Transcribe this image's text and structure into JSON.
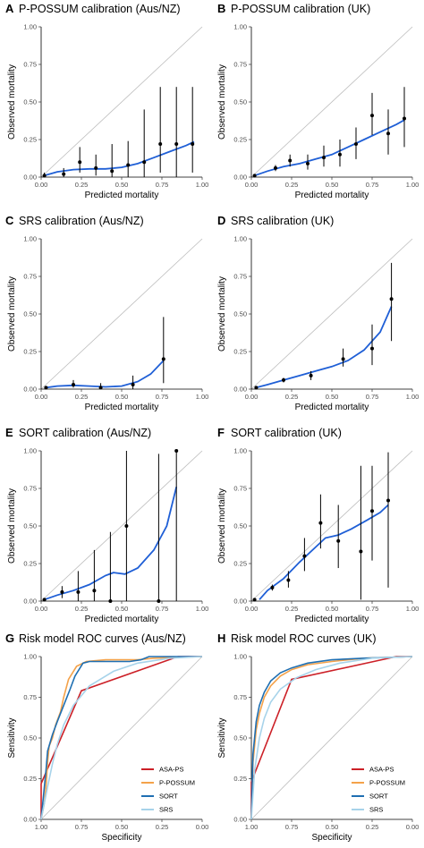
{
  "colors": {
    "calibration_curve": "#1f5fd6",
    "reference_line": "#bdbdbd",
    "points": "#000000"
  },
  "chart_data": [
    {
      "type": "scatter",
      "panel": "A",
      "title": "P-POSSUM calibration (Aus/NZ)",
      "xlabel": "Predicted mortality",
      "ylabel": "Observed mortality",
      "xlim": [
        0,
        1
      ],
      "ylim": [
        0,
        1
      ],
      "xticks": [
        "0.00",
        "0.25",
        "0.50",
        "0.75",
        "1.00"
      ],
      "yticks": [
        "0.00",
        "0.25",
        "0.50",
        "0.75",
        "1.00"
      ],
      "points": [
        {
          "x": 0.02,
          "y": 0.01,
          "lo": 0.0,
          "hi": 0.03
        },
        {
          "x": 0.14,
          "y": 0.02,
          "lo": 0.0,
          "hi": 0.06
        },
        {
          "x": 0.24,
          "y": 0.1,
          "lo": 0.03,
          "hi": 0.2
        },
        {
          "x": 0.34,
          "y": 0.06,
          "lo": 0.01,
          "hi": 0.15
        },
        {
          "x": 0.44,
          "y": 0.04,
          "lo": 0.0,
          "hi": 0.22
        },
        {
          "x": 0.54,
          "y": 0.08,
          "lo": 0.0,
          "hi": 0.24
        },
        {
          "x": 0.64,
          "y": 0.1,
          "lo": 0.0,
          "hi": 0.45
        },
        {
          "x": 0.74,
          "y": 0.22,
          "lo": 0.03,
          "hi": 0.6
        },
        {
          "x": 0.84,
          "y": 0.22,
          "lo": 0.0,
          "hi": 0.6
        },
        {
          "x": 0.94,
          "y": 0.22,
          "lo": 0.03,
          "hi": 0.6
        }
      ],
      "curve": [
        [
          0.02,
          0.01
        ],
        [
          0.1,
          0.035
        ],
        [
          0.2,
          0.05
        ],
        [
          0.3,
          0.055
        ],
        [
          0.4,
          0.055
        ],
        [
          0.5,
          0.065
        ],
        [
          0.6,
          0.09
        ],
        [
          0.7,
          0.13
        ],
        [
          0.8,
          0.17
        ],
        [
          0.9,
          0.21
        ],
        [
          0.95,
          0.235
        ]
      ]
    },
    {
      "type": "scatter",
      "panel": "B",
      "title": "P-POSSUM calibration (UK)",
      "xlabel": "Predicted mortality",
      "ylabel": "Observed mortality",
      "xlim": [
        0,
        1
      ],
      "ylim": [
        0,
        1
      ],
      "xticks": [
        "0.00",
        "0.25",
        "0.50",
        "0.75",
        "1.00"
      ],
      "yticks": [
        "0.00",
        "0.25",
        "0.50",
        "0.75",
        "1.00"
      ],
      "points": [
        {
          "x": 0.02,
          "y": 0.01,
          "lo": 0.005,
          "hi": 0.015
        },
        {
          "x": 0.15,
          "y": 0.06,
          "lo": 0.04,
          "hi": 0.08
        },
        {
          "x": 0.24,
          "y": 0.11,
          "lo": 0.07,
          "hi": 0.15
        },
        {
          "x": 0.35,
          "y": 0.09,
          "lo": 0.05,
          "hi": 0.15
        },
        {
          "x": 0.45,
          "y": 0.13,
          "lo": 0.07,
          "hi": 0.21
        },
        {
          "x": 0.55,
          "y": 0.15,
          "lo": 0.07,
          "hi": 0.25
        },
        {
          "x": 0.65,
          "y": 0.22,
          "lo": 0.12,
          "hi": 0.33
        },
        {
          "x": 0.75,
          "y": 0.41,
          "lo": 0.28,
          "hi": 0.56
        },
        {
          "x": 0.85,
          "y": 0.29,
          "lo": 0.15,
          "hi": 0.45
        },
        {
          "x": 0.95,
          "y": 0.39,
          "lo": 0.2,
          "hi": 0.6
        }
      ],
      "curve": [
        [
          0.02,
          0.01
        ],
        [
          0.1,
          0.04
        ],
        [
          0.2,
          0.07
        ],
        [
          0.3,
          0.09
        ],
        [
          0.4,
          0.12
        ],
        [
          0.5,
          0.15
        ],
        [
          0.6,
          0.2
        ],
        [
          0.7,
          0.25
        ],
        [
          0.8,
          0.3
        ],
        [
          0.9,
          0.35
        ],
        [
          0.95,
          0.38
        ]
      ]
    },
    {
      "type": "scatter",
      "panel": "C",
      "title": "SRS calibration (Aus/NZ)",
      "xlabel": "Predicted mortality",
      "ylabel": "Observed mortality",
      "xlim": [
        0,
        1
      ],
      "ylim": [
        0,
        1
      ],
      "xticks": [
        "0.00",
        "0.25",
        "0.50",
        "0.75",
        "1.00"
      ],
      "yticks": [
        "0.00",
        "0.25",
        "0.50",
        "0.75",
        "1.00"
      ],
      "points": [
        {
          "x": 0.03,
          "y": 0.01,
          "lo": 0.005,
          "hi": 0.02
        },
        {
          "x": 0.2,
          "y": 0.03,
          "lo": 0.01,
          "hi": 0.06
        },
        {
          "x": 0.37,
          "y": 0.01,
          "lo": 0.0,
          "hi": 0.04
        },
        {
          "x": 0.57,
          "y": 0.03,
          "lo": 0.0,
          "hi": 0.09
        },
        {
          "x": 0.76,
          "y": 0.2,
          "lo": 0.04,
          "hi": 0.48
        }
      ],
      "curve": [
        [
          0.03,
          0.01
        ],
        [
          0.1,
          0.02
        ],
        [
          0.2,
          0.025
        ],
        [
          0.3,
          0.02
        ],
        [
          0.4,
          0.015
        ],
        [
          0.5,
          0.02
        ],
        [
          0.6,
          0.05
        ],
        [
          0.68,
          0.1
        ],
        [
          0.76,
          0.19
        ]
      ]
    },
    {
      "type": "scatter",
      "panel": "D",
      "title": "SRS calibration (UK)",
      "xlabel": "Predicted mortality",
      "ylabel": "Observed mortality",
      "xlim": [
        0,
        1
      ],
      "ylim": [
        0,
        1
      ],
      "xticks": [
        "0.00",
        "0.25",
        "0.50",
        "0.75",
        "1.00"
      ],
      "yticks": [
        "0.00",
        "0.25",
        "0.50",
        "0.75",
        "1.00"
      ],
      "points": [
        {
          "x": 0.03,
          "y": 0.01,
          "lo": 0.005,
          "hi": 0.015
        },
        {
          "x": 0.2,
          "y": 0.06,
          "lo": 0.045,
          "hi": 0.075
        },
        {
          "x": 0.37,
          "y": 0.09,
          "lo": 0.06,
          "hi": 0.12
        },
        {
          "x": 0.57,
          "y": 0.2,
          "lo": 0.15,
          "hi": 0.27
        },
        {
          "x": 0.75,
          "y": 0.27,
          "lo": 0.16,
          "hi": 0.43
        },
        {
          "x": 0.87,
          "y": 0.6,
          "lo": 0.32,
          "hi": 0.84
        }
      ],
      "curve": [
        [
          0.03,
          0.01
        ],
        [
          0.1,
          0.03
        ],
        [
          0.2,
          0.06
        ],
        [
          0.3,
          0.09
        ],
        [
          0.4,
          0.12
        ],
        [
          0.5,
          0.15
        ],
        [
          0.6,
          0.19
        ],
        [
          0.7,
          0.26
        ],
        [
          0.8,
          0.38
        ],
        [
          0.87,
          0.55
        ]
      ]
    },
    {
      "type": "scatter",
      "panel": "E",
      "title": "SORT calibration (Aus/NZ)",
      "xlabel": "Predicted mortality",
      "ylabel": "Observed mortality",
      "xlim": [
        0,
        1
      ],
      "ylim": [
        0,
        1
      ],
      "xticks": [
        "0.00",
        "0.25",
        "0.50",
        "0.75",
        "1.00"
      ],
      "yticks": [
        "0.00",
        "0.25",
        "0.50",
        "0.75",
        "1.00"
      ],
      "points": [
        {
          "x": 0.02,
          "y": 0.01,
          "lo": 0.0,
          "hi": 0.02
        },
        {
          "x": 0.13,
          "y": 0.06,
          "lo": 0.02,
          "hi": 0.1
        },
        {
          "x": 0.23,
          "y": 0.06,
          "lo": 0.0,
          "hi": 0.2
        },
        {
          "x": 0.33,
          "y": 0.07,
          "lo": 0.0,
          "hi": 0.34
        },
        {
          "x": 0.43,
          "y": 0.0,
          "lo": 0.0,
          "hi": 0.46
        },
        {
          "x": 0.53,
          "y": 0.5,
          "lo": 0.0,
          "hi": 1.0
        },
        {
          "x": 0.73,
          "y": 0.0,
          "lo": 0.0,
          "hi": 0.98
        },
        {
          "x": 0.84,
          "y": 1.0,
          "lo": 0.0,
          "hi": 1.0
        }
      ],
      "curve": [
        [
          0.02,
          0.01
        ],
        [
          0.1,
          0.04
        ],
        [
          0.2,
          0.07
        ],
        [
          0.3,
          0.11
        ],
        [
          0.4,
          0.17
        ],
        [
          0.45,
          0.19
        ],
        [
          0.52,
          0.18
        ],
        [
          0.6,
          0.22
        ],
        [
          0.7,
          0.34
        ],
        [
          0.78,
          0.5
        ],
        [
          0.84,
          0.76
        ]
      ]
    },
    {
      "type": "scatter",
      "panel": "F",
      "title": "SORT calibration (UK)",
      "xlabel": "Predicted mortality",
      "ylabel": "Observed mortality",
      "xlim": [
        0,
        1
      ],
      "ylim": [
        0,
        1
      ],
      "xticks": [
        "0.00",
        "0.25",
        "0.50",
        "0.75",
        "1.00"
      ],
      "yticks": [
        "0.00",
        "0.25",
        "0.50",
        "0.75",
        "1.00"
      ],
      "points": [
        {
          "x": 0.02,
          "y": 0.01,
          "lo": 0.005,
          "hi": 0.015
        },
        {
          "x": 0.13,
          "y": 0.09,
          "lo": 0.07,
          "hi": 0.11
        },
        {
          "x": 0.23,
          "y": 0.14,
          "lo": 0.09,
          "hi": 0.2
        },
        {
          "x": 0.33,
          "y": 0.3,
          "lo": 0.2,
          "hi": 0.42
        },
        {
          "x": 0.43,
          "y": 0.52,
          "lo": 0.35,
          "hi": 0.71
        },
        {
          "x": 0.54,
          "y": 0.4,
          "lo": 0.22,
          "hi": 0.64
        },
        {
          "x": 0.68,
          "y": 0.33,
          "lo": 0.01,
          "hi": 0.9
        },
        {
          "x": 0.75,
          "y": 0.6,
          "lo": 0.27,
          "hi": 0.9
        },
        {
          "x": 0.85,
          "y": 0.67,
          "lo": 0.09,
          "hi": 0.99
        }
      ],
      "curve": [
        [
          0.05,
          0.01
        ],
        [
          0.1,
          0.07
        ],
        [
          0.2,
          0.15
        ],
        [
          0.3,
          0.26
        ],
        [
          0.4,
          0.36
        ],
        [
          0.46,
          0.42
        ],
        [
          0.54,
          0.44
        ],
        [
          0.62,
          0.48
        ],
        [
          0.72,
          0.54
        ],
        [
          0.8,
          0.59
        ],
        [
          0.85,
          0.64
        ]
      ]
    },
    {
      "type": "line",
      "panel": "G",
      "title": "Risk model ROC curves (Aus/NZ)",
      "xlabel": "Specificity",
      "ylabel": "Sensitivity",
      "xlim": [
        1,
        0
      ],
      "ylim": [
        0,
        1
      ],
      "xticks": [
        "1.00",
        "0.75",
        "0.50",
        "0.25",
        "0.00"
      ],
      "yticks": [
        "0.00",
        "0.25",
        "0.50",
        "0.75",
        "1.00"
      ],
      "legend_position": "bottom-right",
      "series": [
        {
          "name": "ASA-PS",
          "color": "#cc2027",
          "points": [
            [
              1,
              0
            ],
            [
              1,
              0.22
            ],
            [
              0.75,
              0.79
            ],
            [
              0.15,
              1.0
            ],
            [
              0,
              1
            ]
          ]
        },
        {
          "name": "P-POSSUM",
          "color": "#f4a24a",
          "points": [
            [
              1,
              0
            ],
            [
              0.98,
              0.1
            ],
            [
              0.97,
              0.2
            ],
            [
              0.96,
              0.35
            ],
            [
              0.95,
              0.45
            ],
            [
              0.93,
              0.5
            ],
            [
              0.91,
              0.58
            ],
            [
              0.88,
              0.66
            ],
            [
              0.86,
              0.75
            ],
            [
              0.83,
              0.86
            ],
            [
              0.78,
              0.94
            ],
            [
              0.72,
              0.97
            ],
            [
              0.6,
              0.98
            ],
            [
              0.4,
              0.98
            ],
            [
              0.3,
              0.99
            ],
            [
              0,
              1
            ]
          ]
        },
        {
          "name": "SORT",
          "color": "#1f6fb2",
          "points": [
            [
              1,
              0
            ],
            [
              0.99,
              0.1
            ],
            [
              0.98,
              0.2
            ],
            [
              0.97,
              0.3
            ],
            [
              0.96,
              0.42
            ],
            [
              0.93,
              0.52
            ],
            [
              0.9,
              0.6
            ],
            [
              0.86,
              0.7
            ],
            [
              0.82,
              0.8
            ],
            [
              0.79,
              0.88
            ],
            [
              0.74,
              0.96
            ],
            [
              0.7,
              0.97
            ],
            [
              0.6,
              0.97
            ],
            [
              0.45,
              0.97
            ],
            [
              0.38,
              0.98
            ],
            [
              0.33,
              1.0
            ],
            [
              0,
              1
            ]
          ]
        },
        {
          "name": "SRS",
          "color": "#a7d3ea",
          "points": [
            [
              1,
              0
            ],
            [
              0.98,
              0.1
            ],
            [
              0.96,
              0.2
            ],
            [
              0.93,
              0.34
            ],
            [
              0.9,
              0.46
            ],
            [
              0.86,
              0.58
            ],
            [
              0.8,
              0.7
            ],
            [
              0.7,
              0.82
            ],
            [
              0.55,
              0.91
            ],
            [
              0.4,
              0.96
            ],
            [
              0.2,
              0.99
            ],
            [
              0,
              1
            ]
          ]
        }
      ]
    },
    {
      "type": "line",
      "panel": "H",
      "title": "Risk model ROC curves (UK)",
      "xlabel": "Specificity",
      "ylabel": "Sensitivity",
      "xlim": [
        1,
        0
      ],
      "ylim": [
        0,
        1
      ],
      "xticks": [
        "1.00",
        "0.75",
        "0.50",
        "0.25",
        "0.00"
      ],
      "yticks": [
        "0.00",
        "0.25",
        "0.50",
        "0.75",
        "1.00"
      ],
      "legend_position": "bottom-right",
      "series": [
        {
          "name": "ASA-PS",
          "color": "#cc2027",
          "points": [
            [
              1,
              0
            ],
            [
              1,
              0.23
            ],
            [
              0.75,
              0.86
            ],
            [
              0.1,
              1.0
            ],
            [
              0,
              1
            ]
          ]
        },
        {
          "name": "P-POSSUM",
          "color": "#f4a24a",
          "points": [
            [
              1,
              0
            ],
            [
              0.99,
              0.35
            ],
            [
              0.97,
              0.55
            ],
            [
              0.95,
              0.65
            ],
            [
              0.92,
              0.75
            ],
            [
              0.88,
              0.82
            ],
            [
              0.82,
              0.88
            ],
            [
              0.75,
              0.92
            ],
            [
              0.65,
              0.95
            ],
            [
              0.5,
              0.97
            ],
            [
              0.3,
              0.99
            ],
            [
              0,
              1
            ]
          ]
        },
        {
          "name": "SORT",
          "color": "#1f6fb2",
          "points": [
            [
              1,
              0
            ],
            [
              0.99,
              0.4
            ],
            [
              0.97,
              0.6
            ],
            [
              0.95,
              0.7
            ],
            [
              0.92,
              0.78
            ],
            [
              0.88,
              0.85
            ],
            [
              0.82,
              0.9
            ],
            [
              0.75,
              0.93
            ],
            [
              0.65,
              0.96
            ],
            [
              0.5,
              0.98
            ],
            [
              0.3,
              0.99
            ],
            [
              0,
              1
            ]
          ]
        },
        {
          "name": "SRS",
          "color": "#a7d3ea",
          "points": [
            [
              1,
              0
            ],
            [
              0.98,
              0.3
            ],
            [
              0.95,
              0.5
            ],
            [
              0.92,
              0.62
            ],
            [
              0.88,
              0.72
            ],
            [
              0.82,
              0.8
            ],
            [
              0.72,
              0.87
            ],
            [
              0.6,
              0.92
            ],
            [
              0.45,
              0.96
            ],
            [
              0.25,
              0.99
            ],
            [
              0,
              1
            ]
          ]
        }
      ]
    }
  ]
}
